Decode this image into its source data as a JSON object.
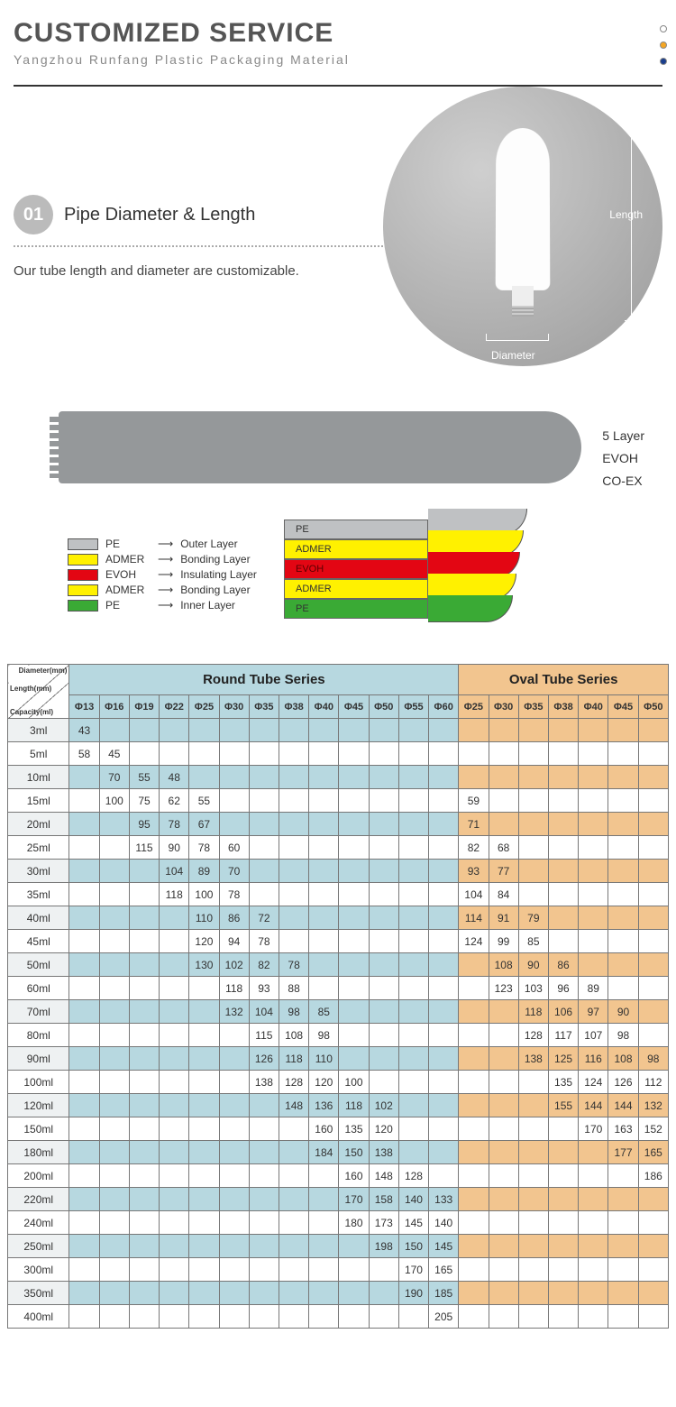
{
  "header": {
    "title": "CUSTOMIZED SERVICE",
    "subtitle": "Yangzhou Runfang Plastic Packaging Material",
    "dot_colors": [
      "#ffffff",
      "#f5a623",
      "#1a3e8c"
    ],
    "dot_border": "#888"
  },
  "section1": {
    "badge": "01",
    "title": "Pipe Diameter & Length",
    "desc": "Our tube length and diameter are customizable.",
    "dim_length": "Length",
    "dim_diameter": "Diameter"
  },
  "layers": {
    "side_labels": [
      "5 Layer",
      "EVOH",
      "CO-EX"
    ],
    "legend": [
      {
        "color": "#bfc1c3",
        "name": "PE",
        "role": "Outer Layer"
      },
      {
        "color": "#fff100",
        "name": "ADMER",
        "role": "Bonding Layer"
      },
      {
        "color": "#e30613",
        "name": "EVOH",
        "role": "Insulating Layer"
      },
      {
        "color": "#fff100",
        "name": "ADMER",
        "role": "Bonding Layer"
      },
      {
        "color": "#3aaa35",
        "name": "PE",
        "role": "Inner Layer"
      }
    ],
    "strips": [
      {
        "color": "#bfc1c3",
        "label": "PE"
      },
      {
        "color": "#fff100",
        "label": "ADMER"
      },
      {
        "color": "#e30613",
        "label": "EVOH",
        "text_color": "#5a0000"
      },
      {
        "color": "#fff100",
        "label": "ADMER"
      },
      {
        "color": "#3aaa35",
        "label": "PE"
      }
    ]
  },
  "table": {
    "colors": {
      "round_header": "#b7d8e0",
      "round_odd": "#b7d8e0",
      "round_even": "#ffffff",
      "oval_header": "#f2c58f",
      "oval_odd": "#f2c58f",
      "oval_even": "#ffffff"
    },
    "corner_labels": [
      "Diameter(mm)",
      "Length(mm)",
      "Capacity(ml)"
    ],
    "round_title": "Round Tube Series",
    "oval_title": "Oval Tube Series",
    "round_diameters": [
      "Φ13",
      "Φ16",
      "Φ19",
      "Φ22",
      "Φ25",
      "Φ30",
      "Φ35",
      "Φ38",
      "Φ40",
      "Φ45",
      "Φ50",
      "Φ55",
      "Φ60"
    ],
    "oval_diameters": [
      "Φ25",
      "Φ30",
      "Φ35",
      "Φ38",
      "Φ40",
      "Φ45",
      "Φ50"
    ],
    "rows": [
      {
        "cap": "3ml",
        "round": [
          "43",
          "",
          "",
          "",
          "",
          "",
          "",
          "",
          "",
          "",
          "",
          "",
          ""
        ],
        "oval": [
          "",
          "",
          "",
          "",
          "",
          "",
          ""
        ]
      },
      {
        "cap": "5ml",
        "round": [
          "58",
          "45",
          "",
          "",
          "",
          "",
          "",
          "",
          "",
          "",
          "",
          "",
          ""
        ],
        "oval": [
          "",
          "",
          "",
          "",
          "",
          "",
          ""
        ]
      },
      {
        "cap": "10ml",
        "round": [
          "",
          "70",
          "55",
          "48",
          "",
          "",
          "",
          "",
          "",
          "",
          "",
          "",
          ""
        ],
        "oval": [
          "",
          "",
          "",
          "",
          "",
          "",
          ""
        ]
      },
      {
        "cap": "15ml",
        "round": [
          "",
          "100",
          "75",
          "62",
          "55",
          "",
          "",
          "",
          "",
          "",
          "",
          "",
          ""
        ],
        "oval": [
          "59",
          "",
          "",
          "",
          "",
          "",
          ""
        ]
      },
      {
        "cap": "20ml",
        "round": [
          "",
          "",
          "95",
          "78",
          "67",
          "",
          "",
          "",
          "",
          "",
          "",
          "",
          ""
        ],
        "oval": [
          "71",
          "",
          "",
          "",
          "",
          "",
          ""
        ]
      },
      {
        "cap": "25ml",
        "round": [
          "",
          "",
          "115",
          "90",
          "78",
          "60",
          "",
          "",
          "",
          "",
          "",
          "",
          ""
        ],
        "oval": [
          "82",
          "68",
          "",
          "",
          "",
          "",
          ""
        ]
      },
      {
        "cap": "30ml",
        "round": [
          "",
          "",
          "",
          "104",
          "89",
          "70",
          "",
          "",
          "",
          "",
          "",
          "",
          ""
        ],
        "oval": [
          "93",
          "77",
          "",
          "",
          "",
          "",
          ""
        ]
      },
      {
        "cap": "35ml",
        "round": [
          "",
          "",
          "",
          "118",
          "100",
          "78",
          "",
          "",
          "",
          "",
          "",
          "",
          ""
        ],
        "oval": [
          "104",
          "84",
          "",
          "",
          "",
          "",
          ""
        ]
      },
      {
        "cap": "40ml",
        "round": [
          "",
          "",
          "",
          "",
          "110",
          "86",
          "72",
          "",
          "",
          "",
          "",
          "",
          ""
        ],
        "oval": [
          "114",
          "91",
          "79",
          "",
          "",
          "",
          ""
        ]
      },
      {
        "cap": "45ml",
        "round": [
          "",
          "",
          "",
          "",
          "120",
          "94",
          "78",
          "",
          "",
          "",
          "",
          "",
          ""
        ],
        "oval": [
          "124",
          "99",
          "85",
          "",
          "",
          "",
          ""
        ]
      },
      {
        "cap": "50ml",
        "round": [
          "",
          "",
          "",
          "",
          "130",
          "102",
          "82",
          "78",
          "",
          "",
          "",
          "",
          ""
        ],
        "oval": [
          "",
          "108",
          "90",
          "86",
          "",
          "",
          ""
        ]
      },
      {
        "cap": "60ml",
        "round": [
          "",
          "",
          "",
          "",
          "",
          "118",
          "93",
          "88",
          "",
          "",
          "",
          "",
          ""
        ],
        "oval": [
          "",
          "123",
          "103",
          "96",
          "89",
          "",
          ""
        ]
      },
      {
        "cap": "70ml",
        "round": [
          "",
          "",
          "",
          "",
          "",
          "132",
          "104",
          "98",
          "85",
          "",
          "",
          "",
          ""
        ],
        "oval": [
          "",
          "",
          "118",
          "106",
          "97",
          "90",
          ""
        ]
      },
      {
        "cap": "80ml",
        "round": [
          "",
          "",
          "",
          "",
          "",
          "",
          "115",
          "108",
          "98",
          "",
          "",
          "",
          ""
        ],
        "oval": [
          "",
          "",
          "128",
          "117",
          "107",
          "98",
          ""
        ]
      },
      {
        "cap": "90ml",
        "round": [
          "",
          "",
          "",
          "",
          "",
          "",
          "126",
          "118",
          "110",
          "",
          "",
          "",
          ""
        ],
        "oval": [
          "",
          "",
          "138",
          "125",
          "116",
          "108",
          "98"
        ]
      },
      {
        "cap": "100ml",
        "round": [
          "",
          "",
          "",
          "",
          "",
          "",
          "138",
          "128",
          "120",
          "100",
          "",
          "",
          ""
        ],
        "oval": [
          "",
          "",
          "",
          "135",
          "124",
          "126",
          "112"
        ]
      },
      {
        "cap": "120ml",
        "round": [
          "",
          "",
          "",
          "",
          "",
          "",
          "",
          "148",
          "136",
          "118",
          "102",
          "",
          ""
        ],
        "oval": [
          "",
          "",
          "",
          "155",
          "144",
          "144",
          "132"
        ]
      },
      {
        "cap": "150ml",
        "round": [
          "",
          "",
          "",
          "",
          "",
          "",
          "",
          "",
          "160",
          "135",
          "120",
          "",
          ""
        ],
        "oval": [
          "",
          "",
          "",
          "",
          "170",
          "163",
          "152"
        ]
      },
      {
        "cap": "180ml",
        "round": [
          "",
          "",
          "",
          "",
          "",
          "",
          "",
          "",
          "184",
          "150",
          "138",
          "",
          ""
        ],
        "oval": [
          "",
          "",
          "",
          "",
          "",
          "177",
          "165"
        ]
      },
      {
        "cap": "200ml",
        "round": [
          "",
          "",
          "",
          "",
          "",
          "",
          "",
          "",
          "",
          "160",
          "148",
          "128",
          ""
        ],
        "oval": [
          "",
          "",
          "",
          "",
          "",
          "",
          "186"
        ]
      },
      {
        "cap": "220ml",
        "round": [
          "",
          "",
          "",
          "",
          "",
          "",
          "",
          "",
          "",
          "170",
          "158",
          "140",
          "133"
        ],
        "oval": [
          "",
          "",
          "",
          "",
          "",
          "",
          ""
        ]
      },
      {
        "cap": "240ml",
        "round": [
          "",
          "",
          "",
          "",
          "",
          "",
          "",
          "",
          "",
          "180",
          "173",
          "145",
          "140"
        ],
        "oval": [
          "",
          "",
          "",
          "",
          "",
          "",
          ""
        ]
      },
      {
        "cap": "250ml",
        "round": [
          "",
          "",
          "",
          "",
          "",
          "",
          "",
          "",
          "",
          "",
          "198",
          "150",
          "145"
        ],
        "oval": [
          "",
          "",
          "",
          "",
          "",
          "",
          ""
        ]
      },
      {
        "cap": "300ml",
        "round": [
          "",
          "",
          "",
          "",
          "",
          "",
          "",
          "",
          "",
          "",
          "",
          "170",
          "165"
        ],
        "oval": [
          "",
          "",
          "",
          "",
          "",
          "",
          ""
        ]
      },
      {
        "cap": "350ml",
        "round": [
          "",
          "",
          "",
          "",
          "",
          "",
          "",
          "",
          "",
          "",
          "",
          "190",
          "185"
        ],
        "oval": [
          "",
          "",
          "",
          "",
          "",
          "",
          ""
        ]
      },
      {
        "cap": "400ml",
        "round": [
          "",
          "",
          "",
          "",
          "",
          "",
          "",
          "",
          "",
          "",
          "",
          "",
          "205"
        ],
        "oval": [
          "",
          "",
          "",
          "",
          "",
          "",
          ""
        ]
      }
    ]
  }
}
